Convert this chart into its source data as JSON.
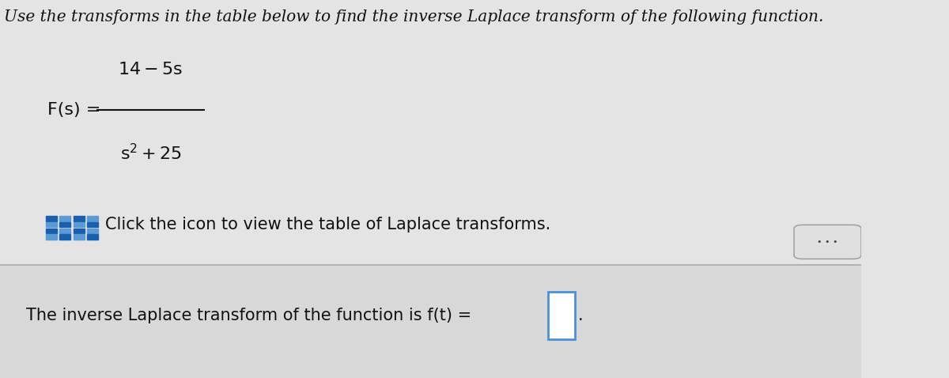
{
  "background_color": "#e4e4e4",
  "title_text": "Use the transforms in the table below to find the inverse Laplace transform of the following function.",
  "title_fontsize": 14.5,
  "title_color": "#111111",
  "font_color_main": "#111111",
  "font_color_bottom": "#111111",
  "divider_color": "#aaaaaa",
  "bottom_bg": "#d8d8d8",
  "answer_box_color": "#4a90d9",
  "grid_colors_dark": "#1a5fad",
  "grid_colors_light": "#5b9bd5",
  "dots_button_bg": "#e0e0e0",
  "dots_button_edge": "#999999"
}
